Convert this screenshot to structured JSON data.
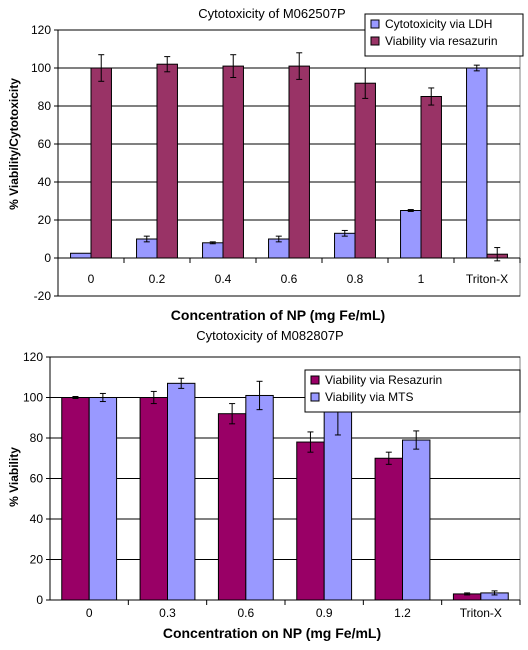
{
  "chart_data": [
    {
      "type": "bar",
      "title": "Cytotoxicity of M062507P",
      "xlabel": "Concentration of NP (mg Fe/mL)",
      "ylabel": "% Viability/Cytotoxicity",
      "ylim": [
        -20,
        120
      ],
      "yticks": [
        -20,
        0,
        20,
        40,
        60,
        80,
        100,
        120
      ],
      "grid": true,
      "legend_position": "top-right",
      "categories": [
        "0",
        "0.2",
        "0.4",
        "0.6",
        "0.8",
        "1",
        "Triton-X"
      ],
      "series": [
        {
          "name": "Cytotoxicity via LDH",
          "color": "#9999ff",
          "values": [
            2.5,
            10,
            8,
            10,
            13,
            25,
            100
          ],
          "errors": [
            0,
            1.5,
            0.5,
            1.5,
            1.5,
            0.5,
            1.5
          ]
        },
        {
          "name": "Viability via resazurin",
          "color": "#993366",
          "values": [
            100,
            102,
            101,
            101,
            92,
            85,
            2
          ],
          "errors": [
            7,
            4,
            6,
            7,
            8,
            4.5,
            3.5
          ]
        }
      ]
    },
    {
      "type": "bar",
      "title": "Cytotoxicity of M082807P",
      "xlabel": "Concentration on NP (mg Fe/mL)",
      "ylabel": "% Viability",
      "ylim": [
        0,
        120
      ],
      "yticks": [
        0,
        20,
        40,
        60,
        80,
        100,
        120
      ],
      "grid": true,
      "legend_position": "top-right",
      "categories": [
        "0",
        "0.3",
        "0.6",
        "0.9",
        "1.2",
        "Triton-X"
      ],
      "series": [
        {
          "name": "Viability via Resazurin",
          "color": "#990066",
          "values": [
            100,
            100,
            92,
            78,
            70,
            3
          ],
          "errors": [
            0.5,
            3,
            5,
            5,
            3,
            0.5
          ]
        },
        {
          "name": "Viability via MTS",
          "color": "#9999ff",
          "values": [
            100,
            107,
            101,
            94,
            79,
            3.5
          ],
          "errors": [
            2,
            2.5,
            7,
            12.5,
            4.5,
            1
          ]
        }
      ]
    }
  ]
}
